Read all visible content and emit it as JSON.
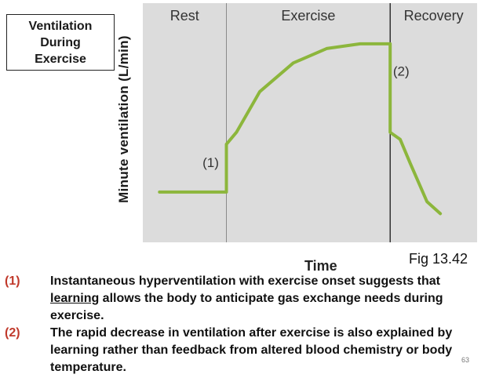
{
  "title_box": {
    "line1": "Ventilation",
    "line2": "During",
    "line3": "Exercise"
  },
  "chart_data": {
    "type": "line",
    "ylabel": "Minute ventilation (L/min)",
    "xlabel": "Time",
    "phases": [
      "Rest",
      "Exercise",
      "Recovery"
    ],
    "phase_boundaries": [
      0.25,
      0.74
    ],
    "annotations": [
      {
        "label": "(1)",
        "x": 0.25,
        "y": 0.36
      },
      {
        "label": "(2)",
        "x": 0.74,
        "y": 0.73
      }
    ],
    "series": [
      {
        "x": [
          0.05,
          0.25,
          0.25,
          0.28,
          0.35,
          0.45,
          0.55,
          0.65,
          0.74,
          0.74,
          0.77,
          0.8,
          0.85,
          0.89
        ],
        "y": [
          0.21,
          0.21,
          0.41,
          0.46,
          0.63,
          0.75,
          0.81,
          0.83,
          0.83,
          0.46,
          0.43,
          0.33,
          0.17,
          0.12
        ]
      }
    ],
    "xlim": [
      0,
      1
    ],
    "ylim": [
      0,
      1
    ],
    "line_color": "#8cb63c",
    "grid": false
  },
  "fig_label": "Fig 13.42",
  "notes": [
    {
      "num": "(1)",
      "pre": "Instantaneous hyperventilation with exercise onset suggests that ",
      "emph": "learning",
      "post": " allows the body to anticipate gas exchange needs during exercise."
    },
    {
      "num": "(2)",
      "pre": "The rapid decrease in ventilation after exercise is also explained by learning rather than feedback from altered blood chemistry or body temperature.",
      "emph": "",
      "post": ""
    }
  ],
  "page_number": "63"
}
